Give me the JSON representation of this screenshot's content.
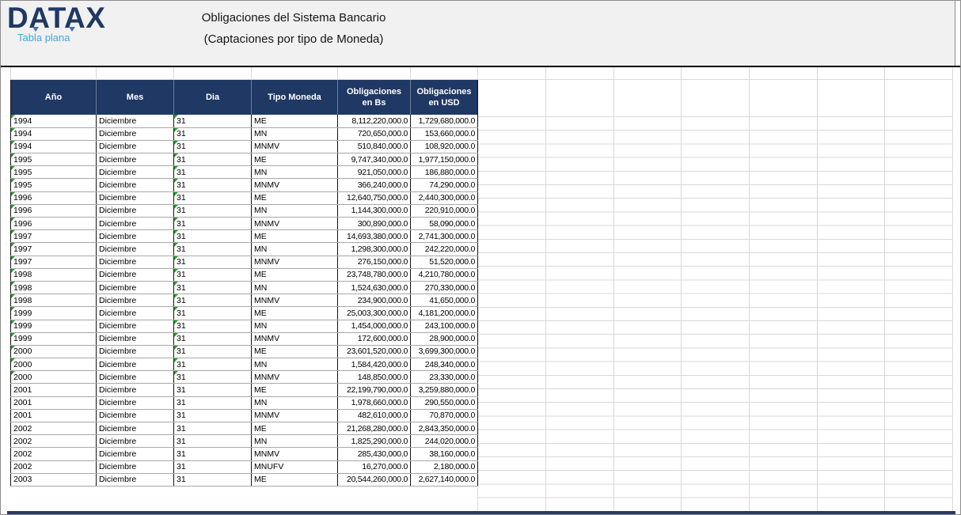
{
  "brand": {
    "logo": "DATAX",
    "tagline": "Tabla plana"
  },
  "title": {
    "line1": "Obligaciones del Sistema Bancario",
    "line2": "(Captaciones por tipo de Moneda)"
  },
  "theme": {
    "header_bg": "#1f3864",
    "logo_color": "#1f3864",
    "tagline_color": "#3fa7dc",
    "error_flag_color": "#2e9b2e"
  },
  "table": {
    "columns": [
      {
        "key": "ano",
        "label": "Año"
      },
      {
        "key": "mes",
        "label": "Mes"
      },
      {
        "key": "dia",
        "label": "Dia"
      },
      {
        "key": "tipo",
        "label": "Tipo Moneda"
      },
      {
        "key": "bs",
        "label": "Obligaciones en Bs"
      },
      {
        "key": "usd",
        "label": "Obligaciones en USD"
      }
    ],
    "rows": [
      {
        "ano": "1994",
        "mes": "Diciembre",
        "dia": "31",
        "tipo": "ME",
        "bs": "8,112,220,000.0",
        "usd": "1,729,680,000.0",
        "flag": true
      },
      {
        "ano": "1994",
        "mes": "Diciembre",
        "dia": "31",
        "tipo": "MN",
        "bs": "720,650,000.0",
        "usd": "153,660,000.0",
        "flag": true
      },
      {
        "ano": "1994",
        "mes": "Diciembre",
        "dia": "31",
        "tipo": "MNMV",
        "bs": "510,840,000.0",
        "usd": "108,920,000.0",
        "flag": true
      },
      {
        "ano": "1995",
        "mes": "Diciembre",
        "dia": "31",
        "tipo": "ME",
        "bs": "9,747,340,000.0",
        "usd": "1,977,150,000.0",
        "flag": true
      },
      {
        "ano": "1995",
        "mes": "Diciembre",
        "dia": "31",
        "tipo": "MN",
        "bs": "921,050,000.0",
        "usd": "186,880,000.0",
        "flag": true
      },
      {
        "ano": "1995",
        "mes": "Diciembre",
        "dia": "31",
        "tipo": "MNMV",
        "bs": "366,240,000.0",
        "usd": "74,290,000.0",
        "flag": true
      },
      {
        "ano": "1996",
        "mes": "Diciembre",
        "dia": "31",
        "tipo": "ME",
        "bs": "12,640,750,000.0",
        "usd": "2,440,300,000.0",
        "flag": true
      },
      {
        "ano": "1996",
        "mes": "Diciembre",
        "dia": "31",
        "tipo": "MN",
        "bs": "1,144,300,000.0",
        "usd": "220,910,000.0",
        "flag": true
      },
      {
        "ano": "1996",
        "mes": "Diciembre",
        "dia": "31",
        "tipo": "MNMV",
        "bs": "300,890,000.0",
        "usd": "58,090,000.0",
        "flag": true
      },
      {
        "ano": "1997",
        "mes": "Diciembre",
        "dia": "31",
        "tipo": "ME",
        "bs": "14,693,380,000.0",
        "usd": "2,741,300,000.0",
        "flag": true
      },
      {
        "ano": "1997",
        "mes": "Diciembre",
        "dia": "31",
        "tipo": "MN",
        "bs": "1,298,300,000.0",
        "usd": "242,220,000.0",
        "flag": true
      },
      {
        "ano": "1997",
        "mes": "Diciembre",
        "dia": "31",
        "tipo": "MNMV",
        "bs": "276,150,000.0",
        "usd": "51,520,000.0",
        "flag": true
      },
      {
        "ano": "1998",
        "mes": "Diciembre",
        "dia": "31",
        "tipo": "ME",
        "bs": "23,748,780,000.0",
        "usd": "4,210,780,000.0",
        "flag": true
      },
      {
        "ano": "1998",
        "mes": "Diciembre",
        "dia": "31",
        "tipo": "MN",
        "bs": "1,524,630,000.0",
        "usd": "270,330,000.0",
        "flag": true
      },
      {
        "ano": "1998",
        "mes": "Diciembre",
        "dia": "31",
        "tipo": "MNMV",
        "bs": "234,900,000.0",
        "usd": "41,650,000.0",
        "flag": true
      },
      {
        "ano": "1999",
        "mes": "Diciembre",
        "dia": "31",
        "tipo": "ME",
        "bs": "25,003,300,000.0",
        "usd": "4,181,200,000.0",
        "flag": true
      },
      {
        "ano": "1999",
        "mes": "Diciembre",
        "dia": "31",
        "tipo": "MN",
        "bs": "1,454,000,000.0",
        "usd": "243,100,000.0",
        "flag": true
      },
      {
        "ano": "1999",
        "mes": "Diciembre",
        "dia": "31",
        "tipo": "MNMV",
        "bs": "172,600,000.0",
        "usd": "28,900,000.0",
        "flag": true
      },
      {
        "ano": "2000",
        "mes": "Diciembre",
        "dia": "31",
        "tipo": "ME",
        "bs": "23,601,520,000.0",
        "usd": "3,699,300,000.0",
        "flag": true
      },
      {
        "ano": "2000",
        "mes": "Diciembre",
        "dia": "31",
        "tipo": "MN",
        "bs": "1,584,420,000.0",
        "usd": "248,340,000.0",
        "flag": true
      },
      {
        "ano": "2000",
        "mes": "Diciembre",
        "dia": "31",
        "tipo": "MNMV",
        "bs": "148,850,000.0",
        "usd": "23,330,000.0",
        "flag": true
      },
      {
        "ano": "2001",
        "mes": "Diciembre",
        "dia": "31",
        "tipo": "ME",
        "bs": "22,199,790,000.0",
        "usd": "3,259,880,000.0",
        "flag": false
      },
      {
        "ano": "2001",
        "mes": "Diciembre",
        "dia": "31",
        "tipo": "MN",
        "bs": "1,978,660,000.0",
        "usd": "290,550,000.0",
        "flag": false
      },
      {
        "ano": "2001",
        "mes": "Diciembre",
        "dia": "31",
        "tipo": "MNMV",
        "bs": "482,610,000.0",
        "usd": "70,870,000.0",
        "flag": false
      },
      {
        "ano": "2002",
        "mes": "Diciembre",
        "dia": "31",
        "tipo": "ME",
        "bs": "21,268,280,000.0",
        "usd": "2,843,350,000.0",
        "flag": false
      },
      {
        "ano": "2002",
        "mes": "Diciembre",
        "dia": "31",
        "tipo": "MN",
        "bs": "1,825,290,000.0",
        "usd": "244,020,000.0",
        "flag": false
      },
      {
        "ano": "2002",
        "mes": "Diciembre",
        "dia": "31",
        "tipo": "MNMV",
        "bs": "285,430,000.0",
        "usd": "38,160,000.0",
        "flag": false
      },
      {
        "ano": "2002",
        "mes": "Diciembre",
        "dia": "31",
        "tipo": "MNUFV",
        "bs": "16,270,000.0",
        "usd": "2,180,000.0",
        "flag": false
      },
      {
        "ano": "2003",
        "mes": "Diciembre",
        "dia": "31",
        "tipo": "ME",
        "bs": "20,544,260,000.0",
        "usd": "2,627,140,000.0",
        "flag": false
      }
    ]
  }
}
